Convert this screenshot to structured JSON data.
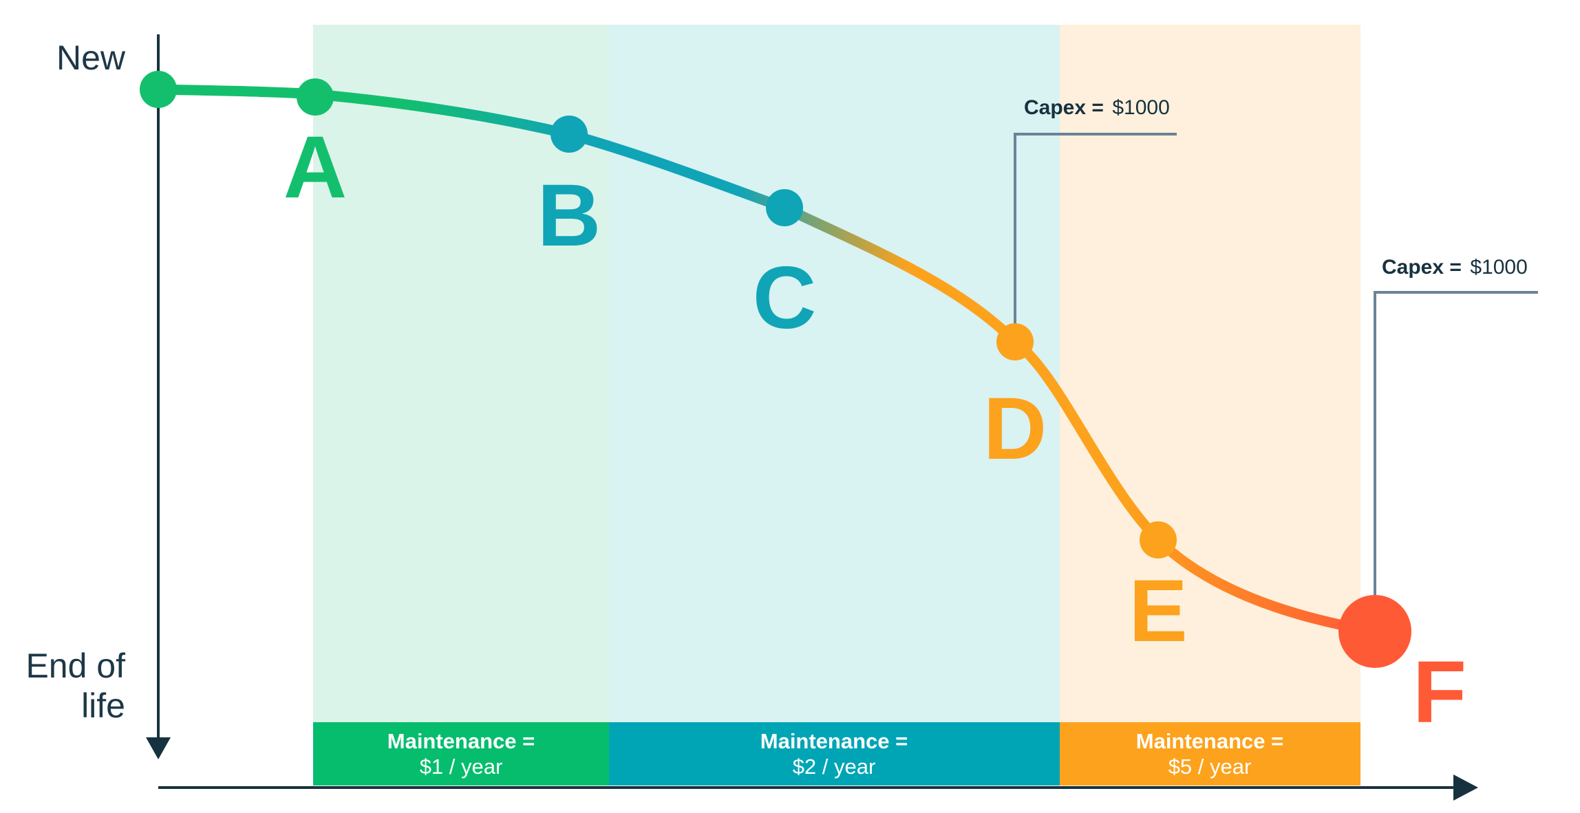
{
  "axis": {
    "top_label": "New",
    "bottom_label_line1": "End of",
    "bottom_label_line2": "life"
  },
  "points": [
    {
      "id": "A",
      "label": "A",
      "color": "#13bf6d"
    },
    {
      "id": "B",
      "label": "B",
      "color": "#10a4b7"
    },
    {
      "id": "C",
      "label": "C",
      "color": "#10a4b7"
    },
    {
      "id": "D",
      "label": "D",
      "color": "#fda21c"
    },
    {
      "id": "E",
      "label": "E",
      "color": "#fda21c"
    },
    {
      "id": "F",
      "label": "F",
      "color": "#ff5a36"
    }
  ],
  "zones": [
    {
      "name": "green",
      "maintenance_label": "Maintenance =",
      "maintenance_value": "$1 / year",
      "bg": "#dbf4e9",
      "bar": "#05bd6d"
    },
    {
      "name": "teal",
      "maintenance_label": "Maintenance =",
      "maintenance_value": "$2 / year",
      "bg": "#d9f2f2",
      "bar": "#00a5b5"
    },
    {
      "name": "orange",
      "maintenance_label": "Maintenance =",
      "maintenance_value": "$5 / year",
      "bg": "#fef0dc",
      "bar": "#fda21c"
    }
  ],
  "capex": [
    {
      "at": "D",
      "label": "Capex =",
      "value": "$1000"
    },
    {
      "at": "F",
      "label": "Capex =",
      "value": "$1000"
    }
  ],
  "colors": {
    "axis": "#17323f",
    "capex_line": "#6a8397",
    "curve_green": "#13bf6d",
    "curve_teal": "#10a4b7",
    "curve_orange": "#fda21c",
    "curve_red": "#ff5a36"
  }
}
